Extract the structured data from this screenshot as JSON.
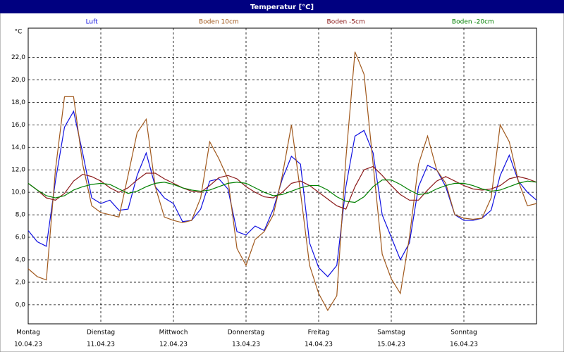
{
  "chart_data": {
    "type": "line",
    "title": "Temperatur [°C]",
    "y_unit": "°C",
    "x": [
      0,
      0.125,
      0.25,
      0.375,
      0.5,
      0.625,
      0.75,
      0.875,
      1,
      1.125,
      1.25,
      1.375,
      1.5,
      1.625,
      1.75,
      1.875,
      2,
      2.125,
      2.25,
      2.375,
      2.5,
      2.625,
      2.75,
      2.875,
      3,
      3.125,
      3.25,
      3.375,
      3.5,
      3.625,
      3.75,
      3.875,
      4,
      4.125,
      4.25,
      4.375,
      4.5,
      4.625,
      4.75,
      4.875,
      5,
      5.125,
      5.25,
      5.375,
      5.5,
      5.625,
      5.75,
      5.875,
      6,
      6.125,
      6.25,
      6.375,
      6.5,
      6.625,
      6.75,
      6.875,
      7
    ],
    "xlim": [
      0,
      7
    ],
    "xticks": [
      {
        "value": 0,
        "label": "Montag"
      },
      {
        "value": 1,
        "label": "Dienstag"
      },
      {
        "value": 2,
        "label": "Mittwoch"
      },
      {
        "value": 3,
        "label": "Donnerstag"
      },
      {
        "value": 4,
        "label": "Freitag"
      },
      {
        "value": 5,
        "label": "Samstag"
      },
      {
        "value": 6,
        "label": "Sonntag"
      }
    ],
    "xtick_dates": [
      "10.04.23",
      "11.04.23",
      "12.04.23",
      "13.04.23",
      "14.04.23",
      "15.04.23",
      "16.04.23"
    ],
    "ylim": [
      -1.7,
      24.6
    ],
    "yticks": [
      {
        "value": 0,
        "label": "0,0"
      },
      {
        "value": 2,
        "label": "2,0"
      },
      {
        "value": 4,
        "label": "4,0"
      },
      {
        "value": 6,
        "label": "6,0"
      },
      {
        "value": 8,
        "label": "8,0"
      },
      {
        "value": 10,
        "label": "10,0"
      },
      {
        "value": 12,
        "label": "12,0"
      },
      {
        "value": 14,
        "label": "14,0"
      },
      {
        "value": 16,
        "label": "16,0"
      },
      {
        "value": 18,
        "label": "18,0"
      },
      {
        "value": 20,
        "label": "20,0"
      },
      {
        "value": 22,
        "label": "22,0"
      }
    ],
    "grid": true,
    "series": [
      {
        "name": "Luft",
        "color": "#1010e0",
        "values": [
          6.6,
          5.6,
          5.2,
          11,
          15.8,
          17.2,
          13.5,
          9.5,
          9.0,
          9.3,
          8.4,
          8.5,
          11.5,
          13.5,
          10.5,
          9.5,
          9.0,
          7.4,
          7.5,
          8.5,
          11,
          11.2,
          10.3,
          6.5,
          6.2,
          7.0,
          6.6,
          8.5,
          11.2,
          13.2,
          12.5,
          5.5,
          3.3,
          2.5,
          3.5,
          10.5,
          15.0,
          15.5,
          13.5,
          8.0,
          6.0,
          4.0,
          5.5,
          10.5,
          12.4,
          12.0,
          10.5,
          8.0,
          7.5,
          7.5,
          7.7,
          8.4,
          11.5,
          13.3,
          11.0,
          10.0,
          9.3
        ]
      },
      {
        "name": "Boden 10cm",
        "color": "#a0581c",
        "values": [
          3.2,
          2.5,
          2.2,
          12,
          18.5,
          18.5,
          12.5,
          8.8,
          8.2,
          8.0,
          7.8,
          11.5,
          15.3,
          16.5,
          10.5,
          7.8,
          7.5,
          7.3,
          7.5,
          9.5,
          14.5,
          13.0,
          11.2,
          5.0,
          3.5,
          5.8,
          6.5,
          8.0,
          11.5,
          16.0,
          10.0,
          3.5,
          1.0,
          -0.5,
          0.8,
          13,
          22.5,
          20.5,
          12.5,
          4.5,
          2.3,
          1.0,
          6.0,
          12.5,
          15.0,
          12.0,
          10.8,
          8.0,
          7.7,
          7.6,
          7.7,
          9.5,
          16.0,
          14.5,
          11.0,
          8.8,
          9.0
        ]
      },
      {
        "name": "Boden -5cm",
        "color": "#8b1a1a",
        "values": [
          10.8,
          10.2,
          9.5,
          9.3,
          9.9,
          11.0,
          11.6,
          11.4,
          11.0,
          10.4,
          10.0,
          10.4,
          11.1,
          11.7,
          11.7,
          11.2,
          10.8,
          10.4,
          10.1,
          10.0,
          10.6,
          11.3,
          11.5,
          11.2,
          10.5,
          10.0,
          9.6,
          9.5,
          10.0,
          10.8,
          11.0,
          10.6,
          10.0,
          9.4,
          8.8,
          8.5,
          10.5,
          12.0,
          12.3,
          11.5,
          10.6,
          9.8,
          9.3,
          9.3,
          10.2,
          11.0,
          11.4,
          11.0,
          10.6,
          10.3,
          10.2,
          10.3,
          10.6,
          11.2,
          11.4,
          11.2,
          10.9
        ]
      },
      {
        "name": "Boden -20cm",
        "color": "#008000",
        "values": [
          10.8,
          10.2,
          9.7,
          9.5,
          9.7,
          10.2,
          10.5,
          10.7,
          10.8,
          10.7,
          10.3,
          9.9,
          10.1,
          10.5,
          10.8,
          10.9,
          10.7,
          10.4,
          10.2,
          10.1,
          10.2,
          10.5,
          10.8,
          10.9,
          10.8,
          10.4,
          10.0,
          9.7,
          9.8,
          10.1,
          10.4,
          10.6,
          10.6,
          10.2,
          9.6,
          9.2,
          9.1,
          9.6,
          10.5,
          11.1,
          11.1,
          10.7,
          10.2,
          9.8,
          9.9,
          10.3,
          10.6,
          10.8,
          10.8,
          10.6,
          10.3,
          10.1,
          10.2,
          10.5,
          10.8,
          11.0,
          10.9
        ]
      }
    ]
  }
}
